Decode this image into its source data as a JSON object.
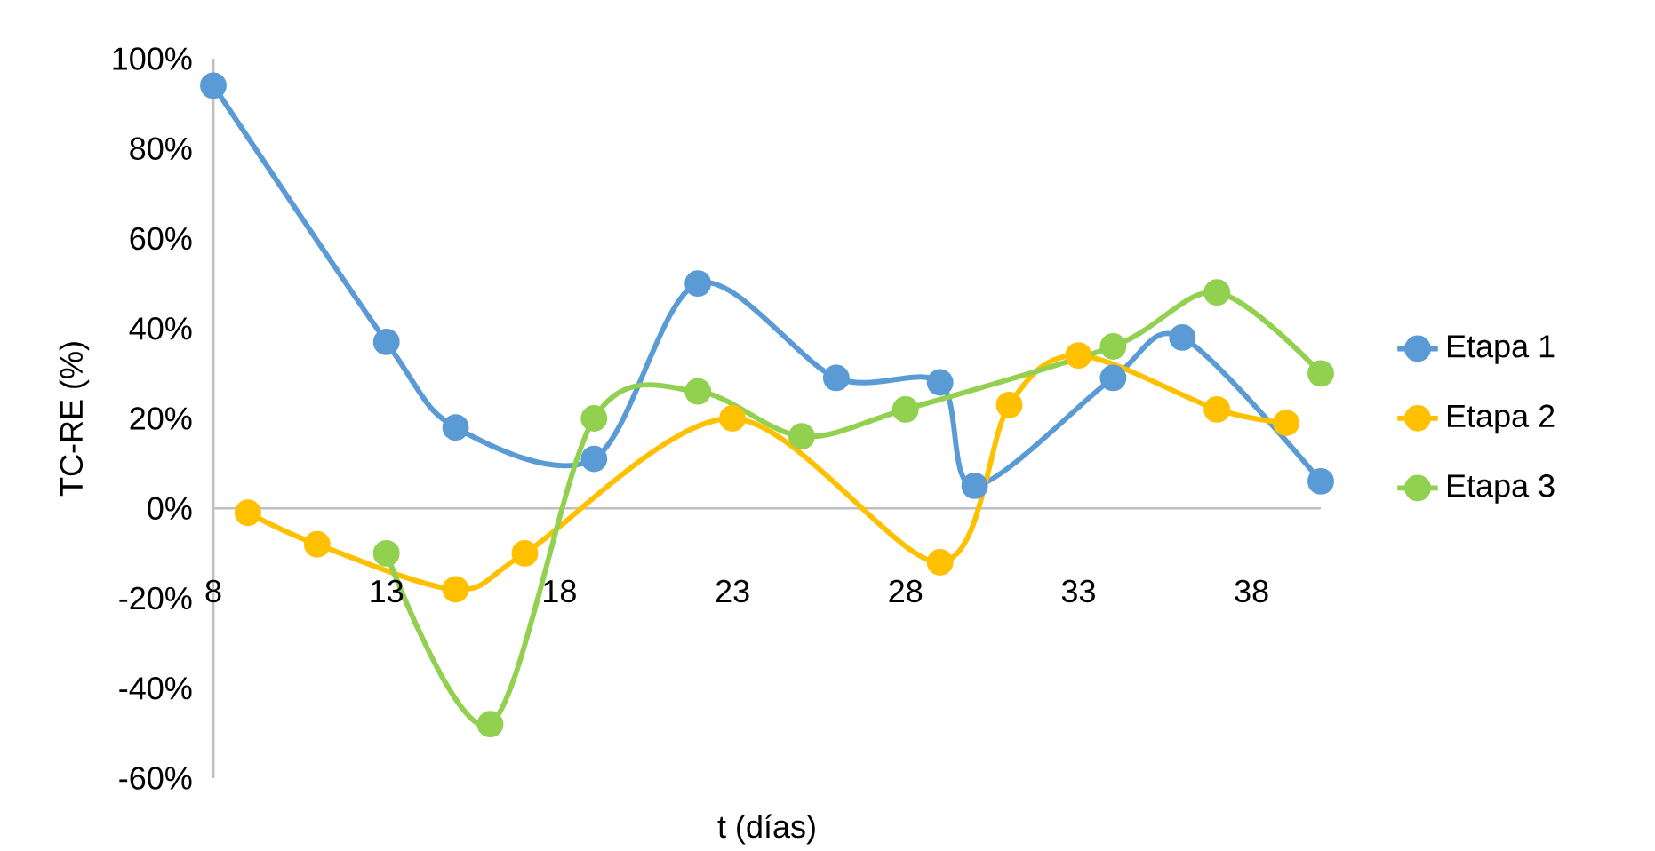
{
  "chart_data": {
    "type": "line",
    "xlabel": "t (días)",
    "ylabel": "TC-RE (%)",
    "xlim": [
      8,
      40
    ],
    "ylim": [
      -60,
      100
    ],
    "xticks": [
      8,
      13,
      18,
      23,
      28,
      33,
      38
    ],
    "yticks": [
      {
        "value": -60,
        "label": "-60%"
      },
      {
        "value": -40,
        "label": "-40%"
      },
      {
        "value": -20,
        "label": "-20%"
      },
      {
        "value": 0,
        "label": "0%"
      },
      {
        "value": 20,
        "label": "20%"
      },
      {
        "value": 40,
        "label": "40%"
      },
      {
        "value": 60,
        "label": "60%"
      },
      {
        "value": 80,
        "label": "80%"
      },
      {
        "value": 100,
        "label": "100%"
      }
    ],
    "marker": "circle",
    "line_style": "solid",
    "grid": false,
    "legend": "right",
    "series": [
      {
        "name": "Etapa 1",
        "color": "#5b9bd5",
        "x": [
          8,
          13,
          15,
          19,
          22,
          26,
          29,
          30,
          34,
          36,
          40
        ],
        "values": [
          94,
          37,
          18,
          11,
          50,
          29,
          28,
          5,
          29,
          38,
          6
        ]
      },
      {
        "name": "Etapa 2",
        "color": "#ffc000",
        "x": [
          9,
          11,
          15,
          17,
          23,
          29,
          31,
          33,
          37,
          39
        ],
        "values": [
          -1,
          -8,
          -18,
          -10,
          20,
          -12,
          23,
          34,
          22,
          19
        ]
      },
      {
        "name": "Etapa 3",
        "color": "#92d050",
        "x": [
          13,
          16,
          19,
          22,
          25,
          28,
          34,
          37,
          40
        ],
        "values": [
          -10,
          -48,
          20,
          26,
          16,
          22,
          36,
          48,
          30
        ]
      }
    ]
  }
}
